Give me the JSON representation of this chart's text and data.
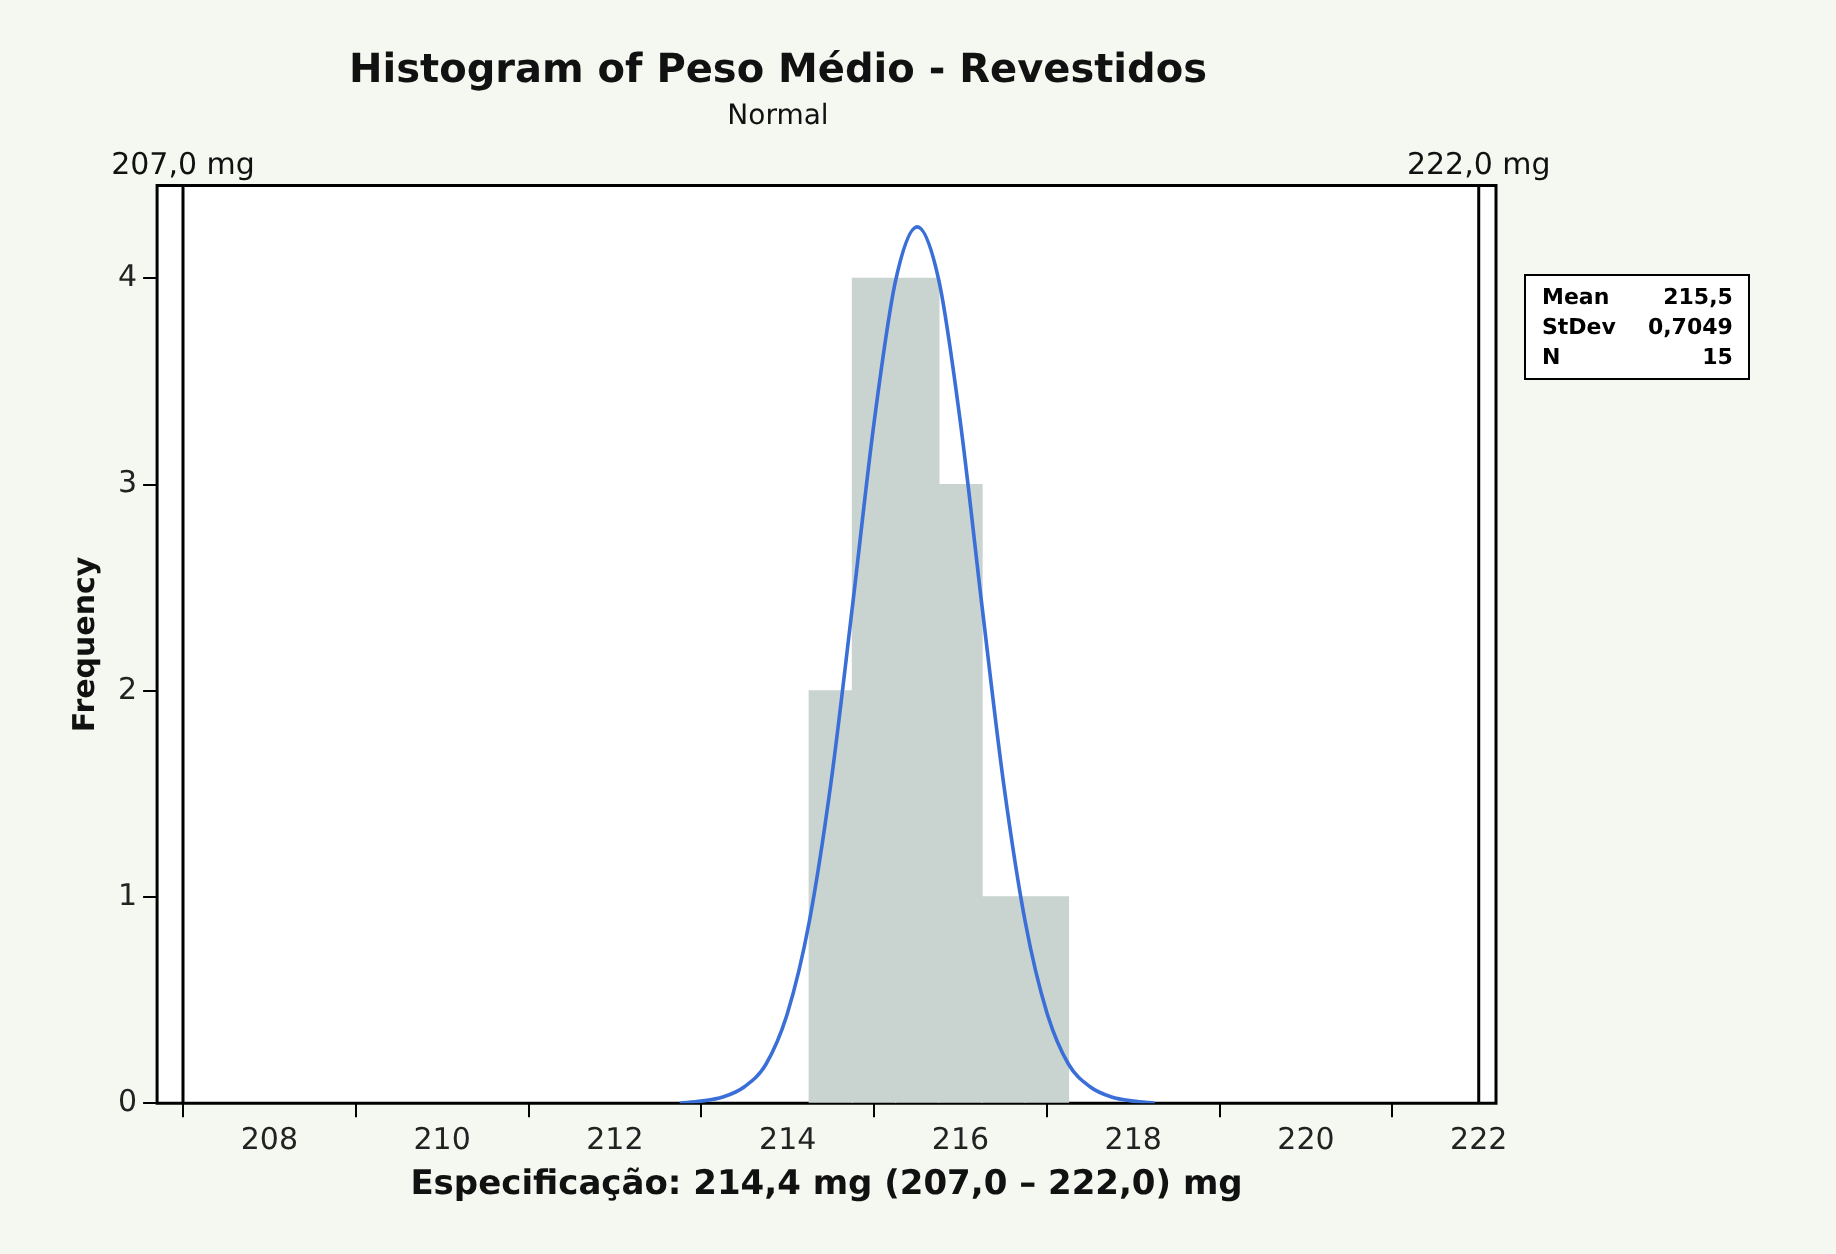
{
  "chart_data": {
    "type": "histogram",
    "title": "Histogram of Peso Médio - Revestidos",
    "subtitle": "Normal",
    "xlabel": "Especificação: 214,4 mg (207,0 – 222,0) mg",
    "ylabel": "Frequency",
    "bins": [
      214.25,
      214.75,
      215.25,
      215.75,
      216.25,
      216.75,
      217.25
    ],
    "values": [
      2,
      4,
      4,
      3,
      1,
      1
    ],
    "color": "#c9d3d0",
    "series": [
      {
        "type": "line",
        "color": "#3a6fd8",
        "x": [
          212.75,
          213,
          213.25,
          213.5,
          213.75,
          214,
          214.25,
          214.5,
          214.75,
          215,
          215.25,
          215.5,
          215.75,
          216,
          216.25,
          216.5,
          216.75,
          217,
          217.25,
          217.5,
          217.75,
          218,
          218.25
        ],
        "values": [
          0,
          0.01,
          0.03,
          0.08,
          0.19,
          0.44,
          0.88,
          1.55,
          2.41,
          3.3,
          3.99,
          4.25,
          3.99,
          3.3,
          2.41,
          1.55,
          0.88,
          0.44,
          0.19,
          0.08,
          0.03,
          0.01,
          0
        ]
      }
    ],
    "xlim": [
      206.7,
      222.2
    ],
    "xticks": [
      208,
      210,
      212,
      214,
      216,
      218,
      220,
      222
    ],
    "ylim": [
      0,
      4.45
    ],
    "yticks": [
      0,
      1,
      2,
      3,
      4
    ],
    "grid": false,
    "legend": false,
    "marker": "none",
    "line_style": "solid",
    "ref_lines": [
      {
        "axis": "x",
        "value": 207,
        "label": "207,0 mg",
        "color": "#000000"
      },
      {
        "axis": "x",
        "value": 222,
        "label": "222,0 mg",
        "color": "#000000"
      }
    ],
    "annotations": [
      "Mean 215,5",
      "StDev 0,7049",
      "N 15"
    ]
  }
}
